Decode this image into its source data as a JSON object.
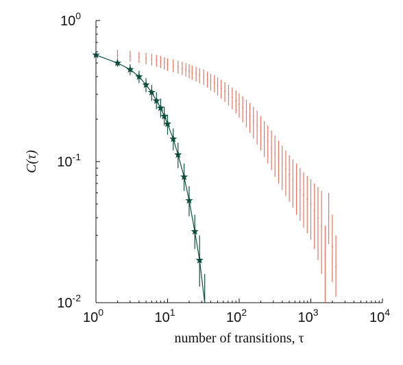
{
  "chart_data": {
    "type": "scatter",
    "x_scale": "log",
    "y_scale": "log",
    "xlim": [
      1,
      10000
    ],
    "ylim": [
      0.01,
      1
    ],
    "grid": false,
    "legend": "none",
    "xlabel": "number of transitions, τ",
    "ylabel": "C(τ)",
    "x_ticks": [
      {
        "value": 1,
        "base": "10",
        "exp": "0"
      },
      {
        "value": 10,
        "base": "10",
        "exp": "1"
      },
      {
        "value": 100,
        "base": "10",
        "exp": "2"
      },
      {
        "value": 1000,
        "base": "10",
        "exp": "3"
      },
      {
        "value": 10000,
        "base": "10",
        "exp": "4"
      }
    ],
    "y_ticks": [
      {
        "value": 1,
        "base": "10",
        "exp": "0"
      },
      {
        "value": 0.1,
        "base": "10",
        "exp": "-1"
      },
      {
        "value": 0.01,
        "base": "10",
        "exp": "-2"
      }
    ],
    "series": [
      {
        "color": "#e8735a",
        "style": "errorbar",
        "x": [
          2,
          3,
          4,
          5,
          6,
          7,
          8,
          9,
          10,
          12,
          14,
          16,
          18,
          20,
          22,
          25,
          28,
          32,
          36,
          40,
          45,
          50,
          56,
          63,
          71,
          80,
          90,
          100,
          112,
          126,
          141,
          158,
          178,
          200,
          224,
          251,
          282,
          316,
          355,
          398,
          447,
          501,
          562,
          631,
          708,
          794,
          891,
          1000,
          1122,
          1259,
          1413,
          1585,
          1778,
          1995,
          2239
        ],
        "y": [
          0.57,
          0.56,
          0.55,
          0.54,
          0.53,
          0.52,
          0.51,
          0.5,
          0.49,
          0.48,
          0.47,
          0.46,
          0.45,
          0.44,
          0.43,
          0.42,
          0.41,
          0.4,
          0.385,
          0.37,
          0.36,
          0.345,
          0.33,
          0.315,
          0.3,
          0.285,
          0.27,
          0.255,
          0.24,
          0.225,
          0.21,
          0.195,
          0.18,
          0.165,
          0.15,
          0.138,
          0.126,
          0.115,
          0.105,
          0.096,
          0.088,
          0.081,
          0.075,
          0.069,
          0.063,
          0.058,
          0.054,
          0.05,
          0.045,
          0.04,
          0.035,
          0.022,
          0.04,
          0.025,
          0.018
        ],
        "y_low": [
          0.52,
          0.51,
          0.5,
          0.49,
          0.48,
          0.47,
          0.46,
          0.45,
          0.44,
          0.43,
          0.42,
          0.41,
          0.4,
          0.39,
          0.38,
          0.37,
          0.36,
          0.35,
          0.335,
          0.32,
          0.31,
          0.295,
          0.28,
          0.265,
          0.25,
          0.235,
          0.22,
          0.205,
          0.19,
          0.175,
          0.16,
          0.146,
          0.132,
          0.12,
          0.108,
          0.097,
          0.087,
          0.078,
          0.07,
          0.063,
          0.057,
          0.052,
          0.047,
          0.042,
          0.038,
          0.034,
          0.031,
          0.028,
          0.024,
          0.02,
          0.016,
          0.01,
          0.026,
          0.014,
          0.011
        ],
        "y_high": [
          0.62,
          0.61,
          0.6,
          0.59,
          0.58,
          0.57,
          0.56,
          0.55,
          0.54,
          0.53,
          0.52,
          0.51,
          0.5,
          0.49,
          0.48,
          0.47,
          0.46,
          0.45,
          0.435,
          0.42,
          0.41,
          0.395,
          0.38,
          0.365,
          0.35,
          0.335,
          0.32,
          0.305,
          0.29,
          0.275,
          0.26,
          0.245,
          0.23,
          0.21,
          0.194,
          0.18,
          0.166,
          0.153,
          0.141,
          0.13,
          0.12,
          0.111,
          0.104,
          0.097,
          0.09,
          0.084,
          0.079,
          0.075,
          0.07,
          0.066,
          0.062,
          0.035,
          0.06,
          0.042,
          0.03
        ]
      },
      {
        "color": "#0d4d3c",
        "style": "line-star-errorbar",
        "x": [
          1,
          2,
          3,
          4,
          5,
          6,
          7,
          8,
          9,
          10,
          12,
          14,
          17,
          20,
          24,
          28,
          33
        ],
        "y": [
          0.57,
          0.5,
          0.45,
          0.4,
          0.35,
          0.31,
          0.27,
          0.24,
          0.21,
          0.185,
          0.145,
          0.112,
          0.078,
          0.053,
          0.032,
          0.02,
          0.01
        ],
        "y_low": [
          0.56,
          0.47,
          0.41,
          0.36,
          0.31,
          0.27,
          0.235,
          0.205,
          0.18,
          0.155,
          0.12,
          0.09,
          0.062,
          0.041,
          0.024,
          0.013,
          0.006
        ],
        "y_high": [
          0.58,
          0.53,
          0.49,
          0.44,
          0.39,
          0.35,
          0.31,
          0.28,
          0.245,
          0.215,
          0.172,
          0.136,
          0.097,
          0.067,
          0.042,
          0.03,
          0.016
        ],
        "markers_until_index": 15
      }
    ]
  }
}
